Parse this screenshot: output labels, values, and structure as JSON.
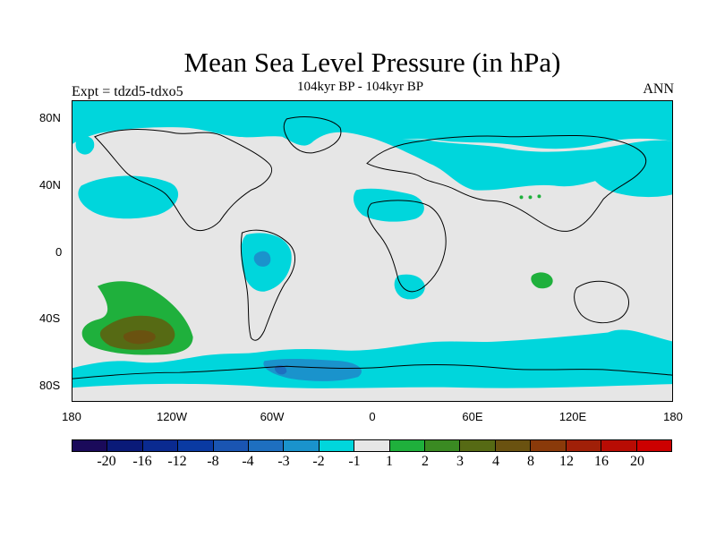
{
  "title": "Mean Sea Level Pressure (in hPa)",
  "subtitle": "104kyr BP - 104kyr BP",
  "experiment": "Expt = tdzd5-tdxo5",
  "season": "ANN",
  "lat_labels": [
    "80N",
    "40N",
    "0",
    "40S",
    "80S"
  ],
  "lon_labels": [
    "180",
    "120W",
    "60W",
    "0",
    "60E",
    "120E",
    "180"
  ],
  "colorbar": {
    "colors": [
      "#1a0a5a",
      "#0a1a78",
      "#0a2a90",
      "#0a3aa2",
      "#1a55b2",
      "#1e6fc0",
      "#1a93cc",
      "#00d6dc",
      "#e6e6e6",
      "#1fb03c",
      "#3a8a22",
      "#566a14",
      "#6a5210",
      "#8a3a0a",
      "#a02008",
      "#b80c04",
      "#cc0000"
    ],
    "labels": [
      "-20",
      "-16",
      "-12",
      "-8",
      "-4",
      "-3",
      "-2",
      "-1",
      "1",
      "2",
      "3",
      "4",
      "8",
      "12",
      "16",
      "20"
    ]
  },
  "map_colors": {
    "background": "#e6e6e6",
    "cyan": "#00d6dc",
    "mid_blue": "#1a93cc",
    "blue": "#1e6fc0",
    "green": "#1fb03c",
    "olive": "#566a14",
    "brown": "#6a5210",
    "coast": "#000000"
  }
}
